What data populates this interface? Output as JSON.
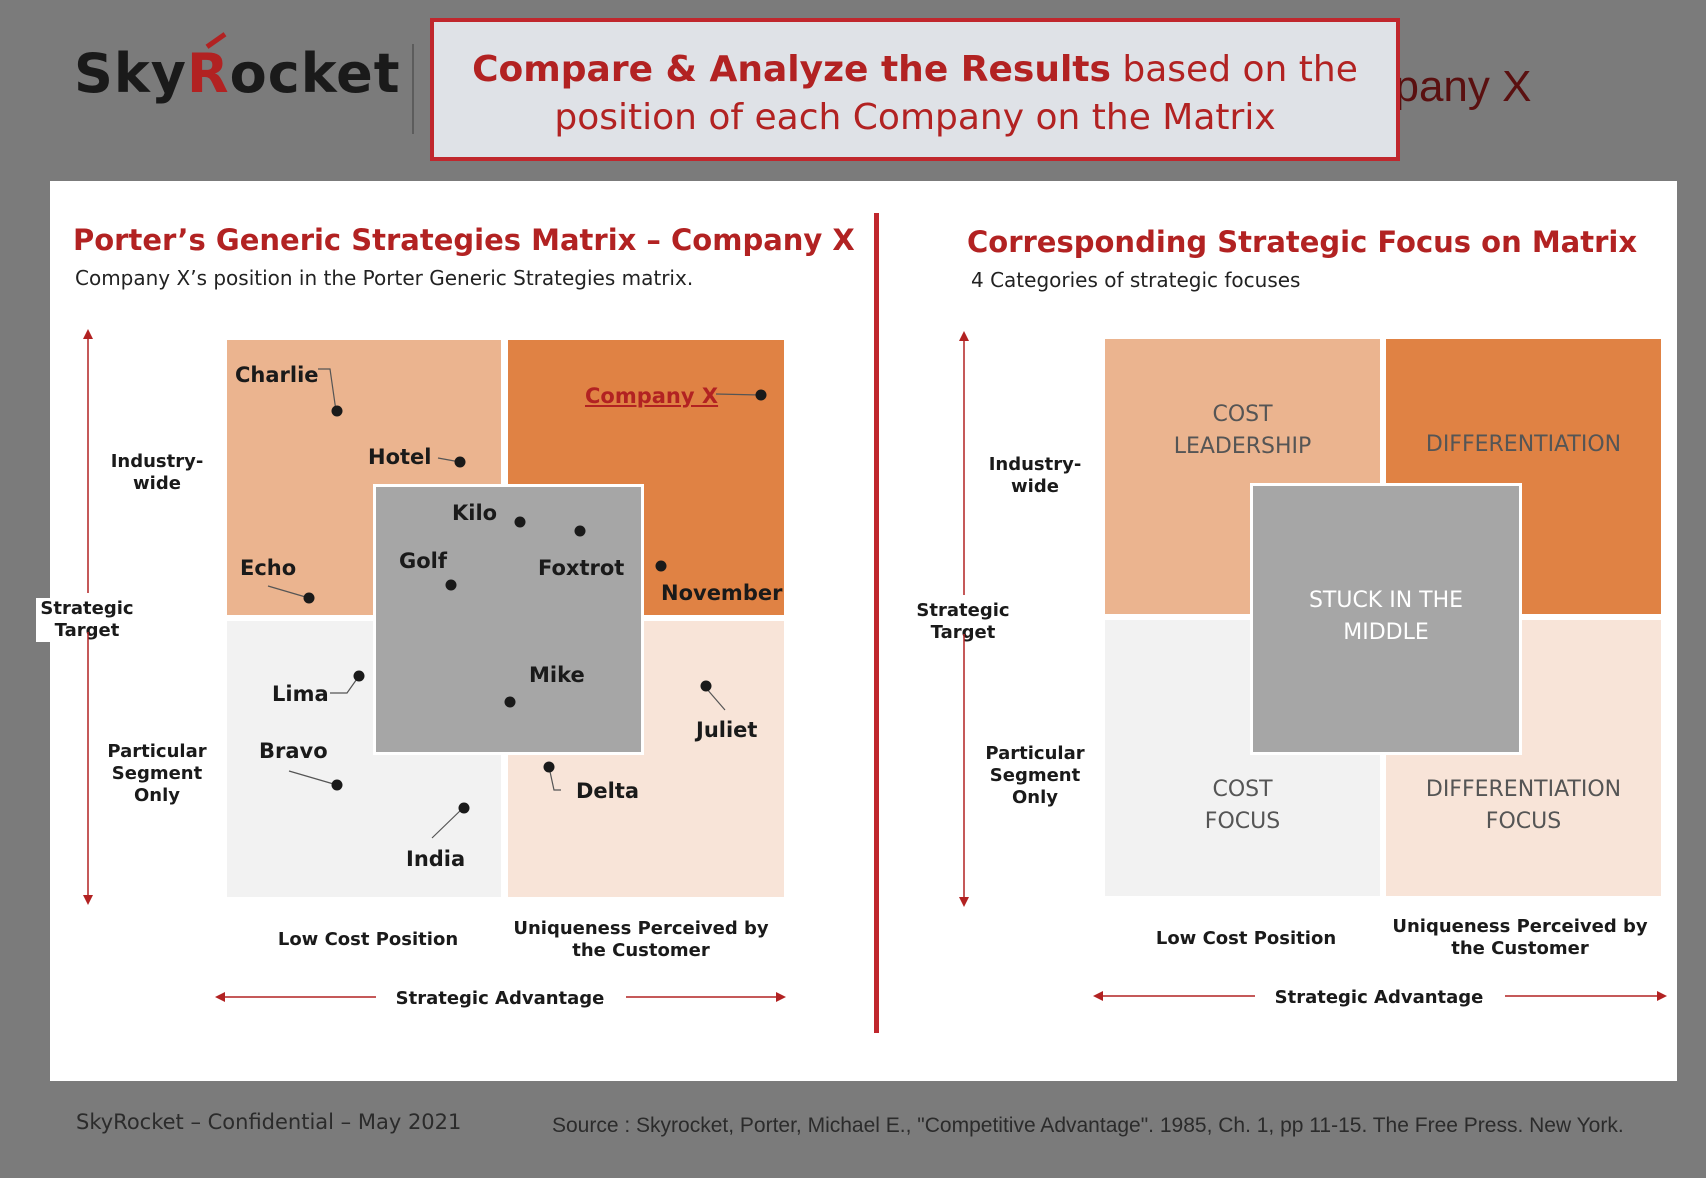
{
  "header": {
    "logo_text_a": "Sky",
    "logo_text_r": "R",
    "logo_text_b": "ocket",
    "background_title_fragment": "npany X",
    "callout_bold": "Compare & Analyze the Results",
    "callout_rest": " based on the position of each Company on the Matrix"
  },
  "left": {
    "title": "Porter’s Generic Strategies Matrix – Company X",
    "subtitle": "Company X’s position in the Porter Generic Strategies matrix.",
    "y_top": "Industry-\nwide",
    "y_mid": "Strategic\nTarget",
    "y_bottom": "Particular\nSegment\nOnly",
    "x_left": "Low Cost Position",
    "x_right": "Uniqueness Perceived by\nthe Customer",
    "x_axis": "Strategic Advantage",
    "companies": {
      "charlie": "Charlie",
      "hotel": "Hotel",
      "companyx": "Company X",
      "kilo": "Kilo",
      "echo": "Echo",
      "golf": "Golf",
      "foxtrot": "Foxtrot",
      "november": "November",
      "lima": "Lima",
      "mike": "Mike",
      "juliet": "Juliet",
      "bravo": "Bravo",
      "delta": "Delta",
      "india": "India"
    }
  },
  "right": {
    "title": "Corresponding Strategic Focus on Matrix",
    "subtitle": "4 Categories of strategic focuses",
    "y_top": "Industry-\nwide",
    "y_mid": "Strategic\nTarget",
    "y_bottom": "Particular\nSegment\nOnly",
    "x_left": "Low Cost Position",
    "x_right": "Uniqueness Perceived by\nthe Customer",
    "x_axis": "Strategic Advantage",
    "q_cost_leadership": "COST\nLEADERSHIP",
    "q_differentiation": "DIFFERENTIATION",
    "q_stuck": "STUCK IN THE\nMIDDLE",
    "q_cost_focus": "COST\nFOCUS",
    "q_diff_focus": "DIFFERENTIATION\nFOCUS"
  },
  "footer": {
    "left": "SkyRocket – Confidential – May 2021",
    "right": "Source : Skyrocket, Porter, Michael E., \"Competitive Advantage\". 1985, Ch. 1, pp 11-15. The Free Press. New York."
  },
  "colors": {
    "accent": "#b22222",
    "quadrant_top_left": "#ebb48f",
    "quadrant_top_right": "#e08244",
    "quadrant_bottom_left": "#f2f2f2",
    "quadrant_bottom_right": "#f8e4d8",
    "center_box": "#a6a6a6"
  }
}
